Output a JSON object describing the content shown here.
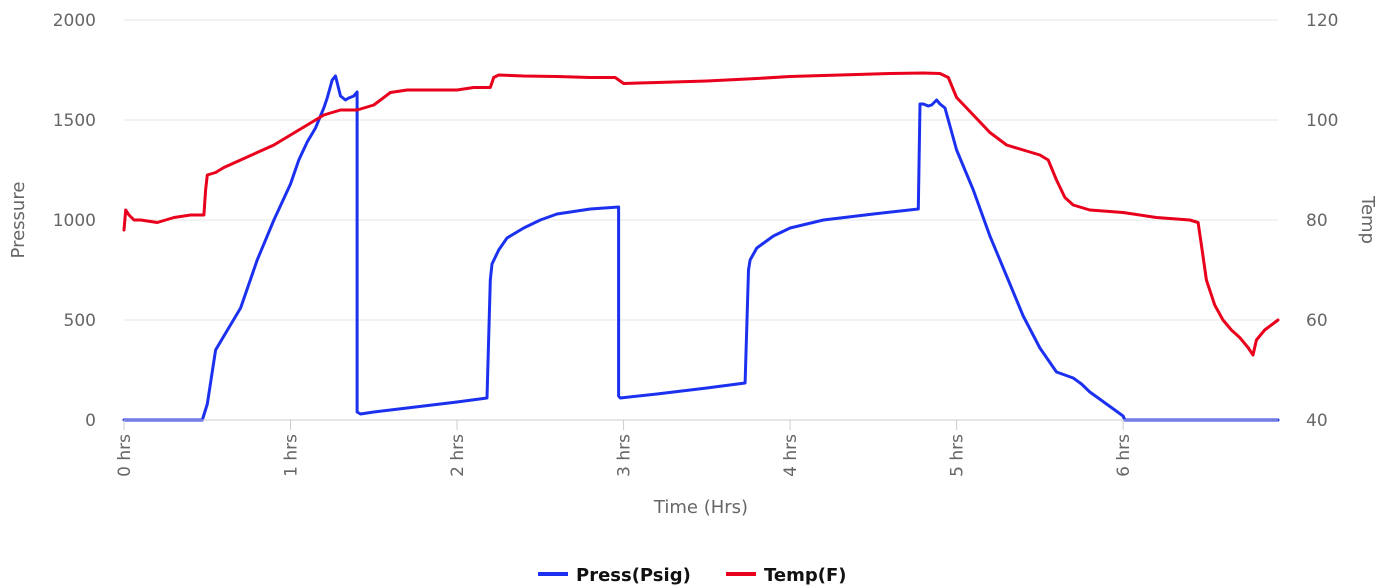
{
  "chart_data": {
    "type": "line",
    "xlabel": "Time (Hrs)",
    "ylabel": "Pressure",
    "y2label": "Temp",
    "xlim": [
      0,
      6.93
    ],
    "ylim": [
      0,
      2000
    ],
    "y2lim": [
      40,
      120
    ],
    "x_ticks": [
      {
        "value": 0,
        "label": "0 hrs"
      },
      {
        "value": 1,
        "label": "1 hrs"
      },
      {
        "value": 2,
        "label": "2 hrs"
      },
      {
        "value": 3,
        "label": "3 hrs"
      },
      {
        "value": 4,
        "label": "4 hrs"
      },
      {
        "value": 5,
        "label": "5 hrs"
      },
      {
        "value": 6,
        "label": "6 hrs"
      }
    ],
    "y_ticks": [
      "0",
      "500",
      "1000",
      "1500",
      "2000"
    ],
    "y2_ticks": [
      "40",
      "60",
      "80",
      "100",
      "120"
    ],
    "grid": true,
    "legend_position": "bottom-center",
    "series": [
      {
        "name": "Press(Psig)",
        "color": "#1c31f0",
        "axis": "left",
        "x": [
          0,
          0.47,
          0.5,
          0.55,
          0.6,
          0.7,
          0.8,
          0.9,
          1.0,
          1.05,
          1.1,
          1.15,
          1.2,
          1.22,
          1.25,
          1.27,
          1.3,
          1.33,
          1.35,
          1.38,
          1.4,
          1.4,
          1.42,
          1.5,
          1.6,
          1.8,
          2.0,
          2.18,
          2.2,
          2.21,
          2.25,
          2.3,
          2.4,
          2.5,
          2.6,
          2.8,
          2.97,
          2.97,
          2.98,
          3.2,
          3.5,
          3.73,
          3.75,
          3.76,
          3.8,
          3.9,
          4.0,
          4.2,
          4.5,
          4.77,
          4.78,
          4.8,
          4.83,
          4.85,
          4.88,
          4.9,
          4.93,
          4.95,
          5.0,
          5.1,
          5.2,
          5.3,
          5.4,
          5.5,
          5.55,
          5.6,
          5.7,
          5.75,
          5.8,
          5.85,
          5.9,
          5.95,
          6.0,
          6.01,
          6.5,
          6.93
        ],
        "values": [
          0,
          0,
          80,
          350,
          420,
          560,
          800,
          1000,
          1180,
          1300,
          1390,
          1460,
          1560,
          1610,
          1700,
          1720,
          1620,
          1600,
          1610,
          1620,
          1640,
          40,
          30,
          40,
          50,
          70,
          90,
          110,
          700,
          780,
          850,
          910,
          960,
          1000,
          1030,
          1055,
          1065,
          120,
          110,
          130,
          160,
          185,
          750,
          800,
          860,
          920,
          960,
          1000,
          1030,
          1055,
          1580,
          1580,
          1570,
          1575,
          1600,
          1580,
          1560,
          1500,
          1350,
          1150,
          920,
          720,
          520,
          360,
          300,
          240,
          210,
          180,
          140,
          110,
          80,
          50,
          20,
          0,
          0,
          0
        ]
      },
      {
        "name": "Temp(F)",
        "color": "#e8001c",
        "axis": "right",
        "x": [
          0,
          0.01,
          0.03,
          0.06,
          0.1,
          0.2,
          0.3,
          0.4,
          0.48,
          0.49,
          0.5,
          0.55,
          0.6,
          0.7,
          0.8,
          0.9,
          1.0,
          1.1,
          1.2,
          1.3,
          1.4,
          1.5,
          1.6,
          1.7,
          1.8,
          1.9,
          2.0,
          2.1,
          2.2,
          2.22,
          2.25,
          2.4,
          2.6,
          2.8,
          2.95,
          3.0,
          3.2,
          3.5,
          3.8,
          4.0,
          4.3,
          4.6,
          4.8,
          4.9,
          4.95,
          5.0,
          5.1,
          5.2,
          5.3,
          5.4,
          5.5,
          5.55,
          5.6,
          5.65,
          5.7,
          5.8,
          6.0,
          6.2,
          6.4,
          6.45,
          6.47,
          6.5,
          6.55,
          6.6,
          6.65,
          6.7,
          6.75,
          6.78,
          6.8,
          6.85,
          6.93
        ],
        "values": [
          78,
          82,
          81,
          80,
          80,
          79.5,
          80.5,
          81,
          81,
          86,
          89,
          89.5,
          90.5,
          92,
          93.5,
          95,
          97,
          99,
          101,
          102,
          102,
          103,
          105.5,
          106,
          106,
          106,
          106,
          106.5,
          106.5,
          108.5,
          109,
          108.8,
          108.7,
          108.5,
          108.5,
          107.3,
          107.5,
          107.8,
          108.3,
          108.7,
          109,
          109.3,
          109.4,
          109.3,
          108.5,
          104.5,
          101,
          97.5,
          95,
          94,
          93,
          92,
          88,
          84.5,
          83,
          82,
          81.5,
          80.5,
          80,
          79.5,
          75,
          68,
          63,
          60,
          58,
          56.5,
          54.5,
          53,
          56,
          58,
          60
        ]
      }
    ]
  }
}
